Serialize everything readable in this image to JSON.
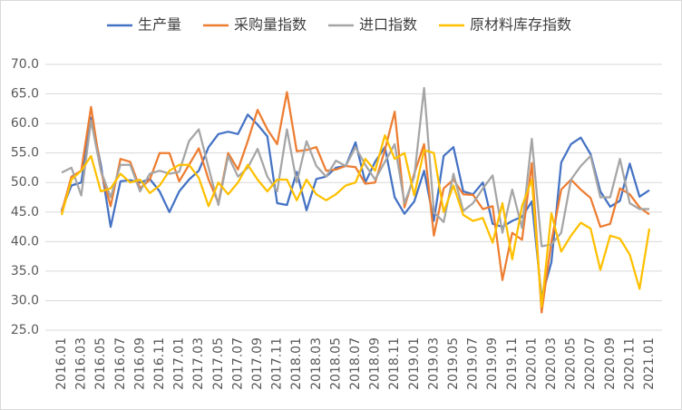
{
  "chart_data": {
    "type": "line",
    "categories": [
      "2016.01",
      null,
      "2016.03",
      null,
      "2016.05",
      null,
      "2016.07",
      null,
      "2016.09",
      null,
      "2016.11",
      null,
      "2017.01",
      null,
      "2017.03",
      null,
      "2017.05",
      null,
      "2017.07",
      null,
      "2017.09",
      null,
      "2017.11",
      null,
      "2018.01",
      null,
      "2018.03",
      null,
      "2018.05",
      null,
      "2018.07",
      null,
      "2018.09",
      null,
      "2018.11",
      null,
      "2019.01",
      null,
      "2019.03",
      null,
      "2019.05",
      null,
      "2019.07",
      null,
      "2019.09",
      null,
      "2019.11",
      null,
      "2020.01",
      null,
      "2020.03",
      null,
      "2020.05",
      null,
      "2020.07",
      null,
      "2020.09",
      null,
      "2020.11",
      null,
      "2021.01"
    ],
    "series": [
      {
        "name": "生产量",
        "color": "#4472c4",
        "values": [
          45.3,
          49.5,
          50.0,
          61.0,
          53.0,
          42.5,
          50.2,
          50.4,
          50.0,
          50.6,
          48.5,
          45.0,
          48.5,
          50.5,
          52.0,
          56.0,
          58.2,
          58.6,
          58.2,
          61.5,
          59.8,
          57.8,
          46.5,
          46.2,
          51.8,
          45.3,
          50.6,
          51.0,
          52.5,
          52.8,
          56.8,
          50.0,
          53.5,
          56.0,
          47.5,
          44.7,
          46.8,
          52.0,
          43.5,
          54.5,
          56.0,
          48.5,
          48.0,
          50.0,
          43.0,
          42.5,
          43.5,
          44.2,
          46.8,
          30.5,
          36.5,
          53.4,
          56.5,
          57.6,
          54.8,
          48.5,
          45.9,
          46.9,
          53.2,
          47.6,
          48.7
        ]
      },
      {
        "name": "采购量指数",
        "color": "#ed7d31",
        "values": [
          45.0,
          51.0,
          52.0,
          62.8,
          52.0,
          46.0,
          54.0,
          53.5,
          49.0,
          50.5,
          55.0,
          55.0,
          50.2,
          53.0,
          55.8,
          50.5,
          46.5,
          55.0,
          52.2,
          57.0,
          62.3,
          59.0,
          56.5,
          65.3,
          55.3,
          55.5,
          56.0,
          52.0,
          52.2,
          52.8,
          52.6,
          49.8,
          50.0,
          55.5,
          62.0,
          45.8,
          51.5,
          56.5,
          41.0,
          49.0,
          50.5,
          48.0,
          47.9,
          45.5,
          46.0,
          33.5,
          41.5,
          40.3,
          53.3,
          28.0,
          40.0,
          48.8,
          50.5,
          48.8,
          47.4,
          42.5,
          43.0,
          49.0,
          48.0,
          45.8,
          44.6
        ]
      },
      {
        "name": "进口指数",
        "color": "#a5a5a5",
        "values": [
          51.7,
          52.5,
          47.8,
          60.5,
          52.0,
          47.5,
          53.0,
          53.0,
          48.5,
          51.5,
          52.0,
          51.5,
          51.8,
          57.0,
          59.0,
          52.5,
          46.2,
          54.5,
          51.0,
          52.5,
          55.7,
          51.0,
          48.5,
          59.0,
          50.0,
          57.0,
          52.8,
          51.0,
          53.7,
          52.8,
          56.0,
          53.0,
          50.5,
          53.5,
          56.5,
          46.5,
          51.0,
          66.0,
          45.0,
          43.3,
          51.5,
          45.2,
          46.5,
          49.0,
          51.2,
          41.5,
          48.8,
          42.3,
          57.4,
          39.2,
          39.5,
          41.5,
          50.5,
          52.8,
          54.5,
          47.5,
          47.5,
          54.0,
          46.5,
          45.5,
          45.5
        ]
      },
      {
        "name": "原材料库存指数",
        "color": "#ffc000",
        "values": [
          44.5,
          50.5,
          52.0,
          54.5,
          48.5,
          49.0,
          51.5,
          50.0,
          50.5,
          48.2,
          49.5,
          52.0,
          53.0,
          53.0,
          50.8,
          46.0,
          50.0,
          48.0,
          50.0,
          53.0,
          50.5,
          48.5,
          50.5,
          50.5,
          47.0,
          50.5,
          48.0,
          47.0,
          48.0,
          49.5,
          50.0,
          54.0,
          52.0,
          58.0,
          54.0,
          55.0,
          47.8,
          55.5,
          55.0,
          45.0,
          49.5,
          44.5,
          43.5,
          44.0,
          39.8,
          46.5,
          37.0,
          46.0,
          50.5,
          29.0,
          44.8,
          38.3,
          41.0,
          43.2,
          42.2,
          35.2,
          41.0,
          40.5,
          37.8,
          32.0,
          42.2
        ]
      }
    ],
    "ylim": [
      25,
      70
    ],
    "yticks": [
      {
        "value": 25,
        "label": "25.0"
      },
      {
        "value": 30,
        "label": "30.0"
      },
      {
        "value": 35,
        "label": "35.0"
      },
      {
        "value": 40,
        "label": "40.0"
      },
      {
        "value": 45,
        "label": "45.0"
      },
      {
        "value": 50,
        "label": "50.0"
      },
      {
        "value": 55,
        "label": "55.0"
      },
      {
        "value": 60,
        "label": "60.0"
      },
      {
        "value": 65,
        "label": "65.0"
      },
      {
        "value": 70,
        "label": "70.0"
      }
    ],
    "grid": true,
    "legend": "top"
  }
}
